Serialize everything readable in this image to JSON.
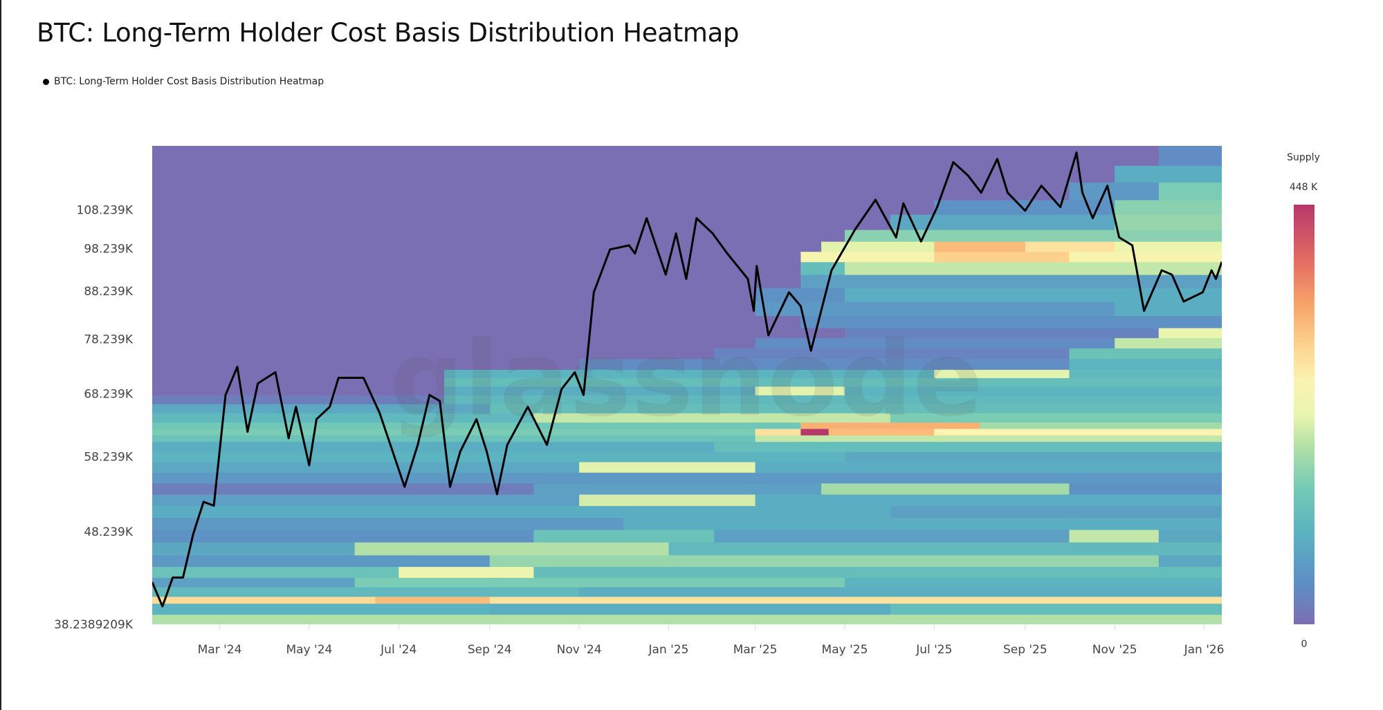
{
  "title": "BTC: Long-Term Holder Cost Basis Distribution Heatmap",
  "legend": {
    "label": "BTC: Long-Term Holder Cost Basis Distribution Heatmap",
    "marker_color": "#000000"
  },
  "watermark": "glassnode",
  "colors": {
    "price_line": "#000000",
    "empty": "#7b6fb3"
  },
  "chart_data": {
    "type": "heatmap",
    "title": "BTC: Long-Term Holder Cost Basis Distribution Heatmap",
    "x_range": [
      "2024-01-15",
      "2026-01-13"
    ],
    "y_scale": "log",
    "ylim": [
      38.239,
      127.1
    ],
    "y_unit": "K USD",
    "y_ticks": [
      {
        "value": 38.2389209,
        "label": "38.2389209K"
      },
      {
        "value": 48.239,
        "label": "48.239K"
      },
      {
        "value": 58.239,
        "label": "58.239K"
      },
      {
        "value": 68.239,
        "label": "68.239K"
      },
      {
        "value": 78.239,
        "label": "78.239K"
      },
      {
        "value": 88.239,
        "label": "88.239K"
      },
      {
        "value": 98.239,
        "label": "98.239K"
      },
      {
        "value": 108.239,
        "label": "108.239K"
      }
    ],
    "x_ticks": [
      {
        "date": "2024-03-01",
        "label": "Mar '24"
      },
      {
        "date": "2024-05-01",
        "label": "May '24"
      },
      {
        "date": "2024-07-01",
        "label": "Jul '24"
      },
      {
        "date": "2024-09-01",
        "label": "Sep '24"
      },
      {
        "date": "2024-11-01",
        "label": "Nov '24"
      },
      {
        "date": "2025-01-01",
        "label": "Jan '25"
      },
      {
        "date": "2025-03-01",
        "label": "Mar '25"
      },
      {
        "date": "2025-05-01",
        "label": "May '25"
      },
      {
        "date": "2025-07-01",
        "label": "Jul '25"
      },
      {
        "date": "2025-09-01",
        "label": "Sep '25"
      },
      {
        "date": "2025-11-01",
        "label": "Nov '25"
      },
      {
        "date": "2026-01-01",
        "label": "Jan '26"
      }
    ],
    "colorbar": {
      "title": "Supply",
      "max_label": "448 K",
      "min_label": "0",
      "range": [
        0,
        448
      ],
      "stops": [
        [
          0,
          "#7b6fb3"
        ],
        [
          0.1,
          "#5e8fc6"
        ],
        [
          0.22,
          "#5bb3c0"
        ],
        [
          0.32,
          "#72c9b6"
        ],
        [
          0.42,
          "#b0dfa6"
        ],
        [
          0.5,
          "#e9f5ae"
        ],
        [
          0.58,
          "#fbf3b0"
        ],
        [
          0.66,
          "#fdd590"
        ],
        [
          0.76,
          "#f8a56a"
        ],
        [
          0.87,
          "#e26b63"
        ],
        [
          1,
          "#b6386a"
        ]
      ]
    },
    "bands": [
      {
        "lo": 38.24,
        "hi": 39.2,
        "steps": [
          [
            "2024-01-15",
            190
          ]
        ]
      },
      {
        "lo": 39.2,
        "hi": 40.3,
        "steps": [
          [
            "2024-01-15",
            100
          ],
          [
            "2024-09-01",
            90
          ],
          [
            "2025-06-01",
            120
          ]
        ]
      },
      {
        "lo": 40.3,
        "hi": 41.0,
        "steps": [
          [
            "2024-01-15",
            290
          ],
          [
            "2024-06-15",
            320
          ],
          [
            "2024-09-01",
            280
          ]
        ]
      },
      {
        "lo": 41.0,
        "hi": 42.0,
        "steps": [
          [
            "2024-01-15",
            110
          ],
          [
            "2024-11-01",
            90
          ]
        ]
      },
      {
        "lo": 42.0,
        "hi": 43.0,
        "steps": [
          [
            "2024-01-15",
            70
          ],
          [
            "2024-06-01",
            150
          ],
          [
            "2025-05-01",
            100
          ]
        ]
      },
      {
        "lo": 43.0,
        "hi": 44.2,
        "steps": [
          [
            "2024-01-15",
            130
          ],
          [
            "2024-07-01",
            230
          ],
          [
            "2024-10-01",
            120
          ]
        ]
      },
      {
        "lo": 44.2,
        "hi": 45.5,
        "steps": [
          [
            "2024-01-15",
            60
          ],
          [
            "2024-09-01",
            170
          ],
          [
            "2025-12-01",
            80
          ]
        ]
      },
      {
        "lo": 45.5,
        "hi": 47.0,
        "steps": [
          [
            "2024-01-15",
            80
          ],
          [
            "2024-06-01",
            190
          ],
          [
            "2025-01-01",
            110
          ]
        ]
      },
      {
        "lo": 47.0,
        "hi": 48.5,
        "steps": [
          [
            "2024-01-15",
            50
          ],
          [
            "2024-10-01",
            130
          ],
          [
            "2025-02-01",
            70
          ],
          [
            "2025-10-01",
            200
          ],
          [
            "2025-12-01",
            80
          ]
        ]
      },
      {
        "lo": 48.5,
        "hi": 50.0,
        "steps": [
          [
            "2024-01-15",
            60
          ],
          [
            "2024-12-01",
            90
          ]
        ]
      },
      {
        "lo": 50.0,
        "hi": 51.5,
        "steps": [
          [
            "2024-01-15",
            90
          ],
          [
            "2025-06-01",
            70
          ]
        ]
      },
      {
        "lo": 51.5,
        "hi": 53.0,
        "steps": [
          [
            "2024-01-15",
            70
          ],
          [
            "2024-11-01",
            210
          ],
          [
            "2025-03-01",
            90
          ]
        ]
      },
      {
        "lo": 53.0,
        "hi": 54.5,
        "steps": [
          [
            "2024-01-15",
            20
          ],
          [
            "2024-10-01",
            70
          ],
          [
            "2025-04-15",
            180
          ],
          [
            "2025-10-01",
            50
          ]
        ]
      },
      {
        "lo": 54.5,
        "hi": 56.0,
        "steps": [
          [
            "2024-01-15",
            60
          ]
        ]
      },
      {
        "lo": 56.0,
        "hi": 57.5,
        "steps": [
          [
            "2024-01-15",
            80
          ],
          [
            "2024-11-01",
            220
          ],
          [
            "2025-03-01",
            90
          ]
        ]
      },
      {
        "lo": 57.5,
        "hi": 59.0,
        "steps": [
          [
            "2024-01-15",
            100
          ],
          [
            "2025-05-01",
            80
          ]
        ]
      },
      {
        "lo": 59.0,
        "hi": 60.5,
        "steps": [
          [
            "2024-01-15",
            90
          ],
          [
            "2025-02-01",
            120
          ]
        ]
      },
      {
        "lo": 60.5,
        "hi": 61.5,
        "steps": [
          [
            "2024-01-15",
            130
          ],
          [
            "2025-03-01",
            200
          ]
        ]
      },
      {
        "lo": 61.5,
        "hi": 62.5,
        "steps": [
          [
            "2024-01-15",
            150
          ],
          [
            "2025-03-01",
            280
          ],
          [
            "2025-04-01",
            448
          ],
          [
            "2025-04-20",
            320
          ],
          [
            "2025-07-01",
            260
          ]
        ]
      },
      {
        "lo": 62.5,
        "hi": 63.5,
        "steps": [
          [
            "2024-01-15",
            140
          ],
          [
            "2025-04-01",
            330
          ],
          [
            "2025-08-01",
            180
          ]
        ]
      },
      {
        "lo": 63.5,
        "hi": 65.0,
        "steps": [
          [
            "2024-01-15",
            110
          ],
          [
            "2024-10-01",
            200
          ],
          [
            "2025-06-01",
            150
          ]
        ]
      },
      {
        "lo": 65.0,
        "hi": 66.5,
        "steps": [
          [
            "2024-01-15",
            80
          ],
          [
            "2024-09-01",
            120
          ]
        ]
      },
      {
        "lo": 66.5,
        "hi": 68.0,
        "steps": [
          [
            "2024-01-15",
            20
          ],
          [
            "2024-08-01",
            110
          ]
        ]
      },
      {
        "lo": 68.0,
        "hi": 69.5,
        "steps": [
          [
            "2024-01-15",
            0
          ],
          [
            "2024-08-01",
            90
          ],
          [
            "2025-03-01",
            220
          ],
          [
            "2025-05-01",
            100
          ]
        ]
      },
      {
        "lo": 69.5,
        "hi": 71.0,
        "steps": [
          [
            "2024-01-15",
            0
          ],
          [
            "2024-08-01",
            120
          ]
        ]
      },
      {
        "lo": 71.0,
        "hi": 72.5,
        "steps": [
          [
            "2024-01-15",
            0
          ],
          [
            "2024-08-01",
            100
          ],
          [
            "2025-07-01",
            220
          ],
          [
            "2025-10-01",
            110
          ]
        ]
      },
      {
        "lo": 72.5,
        "hi": 74.5,
        "steps": [
          [
            "2024-01-15",
            0
          ],
          [
            "2024-11-01",
            40
          ],
          [
            "2025-10-01",
            100
          ]
        ]
      },
      {
        "lo": 74.5,
        "hi": 76.5,
        "steps": [
          [
            "2024-01-15",
            0
          ],
          [
            "2025-02-01",
            30
          ],
          [
            "2025-10-01",
            130
          ]
        ]
      },
      {
        "lo": 76.5,
        "hi": 78.5,
        "steps": [
          [
            "2024-01-15",
            0
          ],
          [
            "2025-03-01",
            40
          ],
          [
            "2025-11-01",
            200
          ]
        ]
      },
      {
        "lo": 78.5,
        "hi": 80.5,
        "steps": [
          [
            "2024-01-15",
            0
          ],
          [
            "2025-05-01",
            30
          ],
          [
            "2025-12-01",
            230
          ]
        ]
      },
      {
        "lo": 80.5,
        "hi": 83.0,
        "steps": [
          [
            "2024-01-15",
            0
          ],
          [
            "2025-04-01",
            50
          ]
        ]
      },
      {
        "lo": 83.0,
        "hi": 86.0,
        "steps": [
          [
            "2024-01-15",
            0
          ],
          [
            "2025-03-01",
            60
          ],
          [
            "2025-11-01",
            90
          ]
        ]
      },
      {
        "lo": 86.0,
        "hi": 89.0,
        "steps": [
          [
            "2024-01-15",
            0
          ],
          [
            "2025-03-01",
            50
          ],
          [
            "2025-05-01",
            90
          ]
        ]
      },
      {
        "lo": 89.0,
        "hi": 92.0,
        "steps": [
          [
            "2024-01-15",
            0
          ],
          [
            "2025-04-01",
            70
          ]
        ]
      },
      {
        "lo": 92.0,
        "hi": 95.0,
        "steps": [
          [
            "2024-01-15",
            0
          ],
          [
            "2025-04-01",
            120
          ],
          [
            "2025-05-01",
            200
          ]
        ]
      },
      {
        "lo": 95.0,
        "hi": 97.5,
        "steps": [
          [
            "2024-01-15",
            0
          ],
          [
            "2025-04-01",
            250
          ],
          [
            "2025-07-01",
            300
          ],
          [
            "2025-10-01",
            250
          ]
        ]
      },
      {
        "lo": 97.5,
        "hi": 100.0,
        "steps": [
          [
            "2024-01-15",
            0
          ],
          [
            "2025-04-15",
            220
          ],
          [
            "2025-07-01",
            320
          ],
          [
            "2025-09-01",
            280
          ],
          [
            "2025-11-01",
            230
          ]
        ]
      },
      {
        "lo": 100.0,
        "hi": 103.0,
        "steps": [
          [
            "2024-01-15",
            0
          ],
          [
            "2025-05-01",
            160
          ]
        ]
      },
      {
        "lo": 103.0,
        "hi": 107.0,
        "steps": [
          [
            "2024-01-15",
            0
          ],
          [
            "2025-06-01",
            80
          ],
          [
            "2025-11-01",
            170
          ]
        ]
      },
      {
        "lo": 107.0,
        "hi": 111.0,
        "steps": [
          [
            "2024-01-15",
            0
          ],
          [
            "2025-07-01",
            50
          ],
          [
            "2025-11-01",
            160
          ]
        ]
      },
      {
        "lo": 111.0,
        "hi": 116.0,
        "steps": [
          [
            "2024-01-15",
            0
          ],
          [
            "2025-10-01",
            60
          ],
          [
            "2025-12-01",
            150
          ]
        ]
      },
      {
        "lo": 116.0,
        "hi": 121.0,
        "steps": [
          [
            "2024-01-15",
            0
          ],
          [
            "2025-11-01",
            90
          ]
        ]
      },
      {
        "lo": 121.0,
        "hi": 127.1,
        "steps": [
          [
            "2024-01-15",
            0
          ],
          [
            "2025-12-01",
            40
          ]
        ]
      }
    ],
    "price_series": {
      "x": [
        "2024-01-15",
        "2024-01-22",
        "2024-01-29",
        "2024-02-05",
        "2024-02-12",
        "2024-02-19",
        "2024-02-26",
        "2024-03-05",
        "2024-03-13",
        "2024-03-20",
        "2024-03-27",
        "2024-04-08",
        "2024-04-17",
        "2024-04-22",
        "2024-05-01",
        "2024-05-06",
        "2024-05-15",
        "2024-05-21",
        "2024-06-07",
        "2024-06-18",
        "2024-07-05",
        "2024-07-14",
        "2024-07-22",
        "2024-07-29",
        "2024-08-05",
        "2024-08-12",
        "2024-08-23",
        "2024-08-30",
        "2024-09-06",
        "2024-09-13",
        "2024-09-27",
        "2024-10-10",
        "2024-10-20",
        "2024-10-29",
        "2024-11-04",
        "2024-11-11",
        "2024-11-22",
        "2024-12-05",
        "2024-12-09",
        "2024-12-17",
        "2024-12-30",
        "2025-01-06",
        "2025-01-13",
        "2025-01-20",
        "2025-01-31",
        "2025-02-10",
        "2025-02-24",
        "2025-02-28",
        "2025-03-02",
        "2025-03-10",
        "2025-03-24",
        "2025-04-01",
        "2025-04-08",
        "2025-04-22",
        "2025-05-08",
        "2025-05-22",
        "2025-06-05",
        "2025-06-10",
        "2025-06-22",
        "2025-07-03",
        "2025-07-14",
        "2025-07-24",
        "2025-08-02",
        "2025-08-13",
        "2025-08-20",
        "2025-09-01",
        "2025-09-12",
        "2025-09-25",
        "2025-10-06",
        "2025-10-10",
        "2025-10-17",
        "2025-10-27",
        "2025-11-04",
        "2025-11-13",
        "2025-11-21",
        "2025-12-03",
        "2025-12-10",
        "2025-12-18",
        "2025-12-31",
        "2026-01-06",
        "2026-01-09",
        "2026-01-13"
      ],
      "y": [
        42.5,
        40.0,
        43.0,
        43.0,
        48.0,
        52.0,
        51.5,
        68.0,
        73.0,
        62.0,
        70.0,
        72.0,
        61.0,
        66.0,
        57.0,
        64.0,
        66.0,
        71.0,
        71.0,
        65.0,
        54.0,
        60.0,
        68.0,
        67.0,
        54.0,
        59.0,
        64.0,
        59.0,
        53.0,
        60.0,
        66.0,
        60.0,
        69.0,
        72.0,
        68.0,
        88.0,
        98.0,
        99.0,
        97.0,
        106.0,
        92.0,
        102.0,
        91.0,
        106.0,
        102.0,
        97.0,
        91.0,
        84.0,
        94.0,
        79.0,
        88.0,
        85.0,
        76.0,
        93.0,
        103.0,
        111.0,
        101.0,
        110.0,
        100.0,
        109.0,
        122.0,
        118.0,
        113.0,
        123.0,
        113.0,
        108.0,
        115.0,
        109.0,
        125.0,
        113.0,
        106.0,
        115.0,
        101.0,
        99.0,
        84.0,
        93.0,
        92.0,
        86.0,
        88.0,
        93.0,
        91.0,
        95.0
      ]
    }
  }
}
